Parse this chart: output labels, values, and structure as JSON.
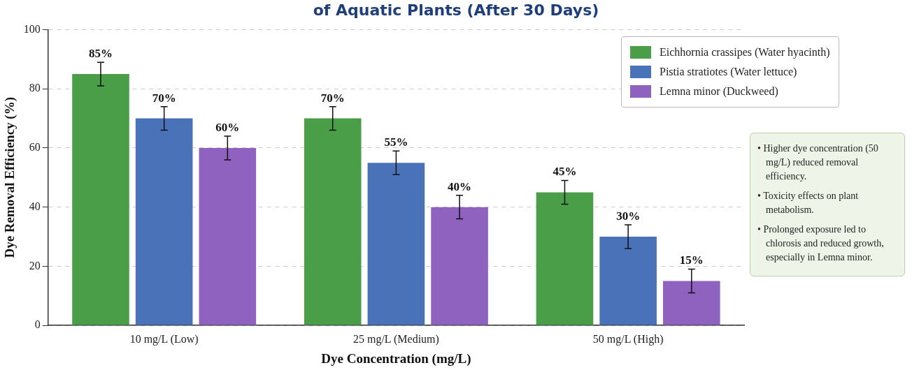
{
  "chart_data": {
    "type": "bar",
    "title": "of Aquatic Plants (After 30 Days)",
    "xlabel": "Dye Concentration (mg/L)",
    "ylabel": "Dye Removal Efficiency (%)",
    "categories": [
      "10 mg/L (Low)",
      "25 mg/L (Medium)",
      "50 mg/L (High)"
    ],
    "series": [
      {
        "name": "Eichhornia crassipes (Water hyacinth)",
        "color": "#4a9e48",
        "values": [
          85,
          70,
          45
        ],
        "errors": [
          4,
          4,
          4
        ],
        "value_labels": [
          "85%",
          "70%",
          "45%"
        ]
      },
      {
        "name": "Pistia stratiotes (Water lettuce)",
        "color": "#4a72b8",
        "values": [
          70,
          55,
          30
        ],
        "errors": [
          4,
          4,
          4
        ],
        "value_labels": [
          "70%",
          "55%",
          "30%"
        ]
      },
      {
        "name": "Lemna minor (Duckweed)",
        "color": "#8e62be",
        "values": [
          60,
          40,
          15
        ],
        "errors": [
          4,
          4,
          4
        ],
        "value_labels": [
          "60%",
          "40%",
          "15%"
        ]
      }
    ],
    "ylim": [
      0,
      100
    ],
    "yticks": [
      0,
      20,
      40,
      60,
      80,
      100
    ],
    "grid": "y",
    "legend": "top right",
    "annotations": [
      "• Higher dye concentration (50 mg/L) reduced removal efficiency.",
      "• Toxicity effects on plant metabolism.",
      "• Prolonged exposure led to chlorosis and reduced growth, especially in Lemna minor."
    ]
  }
}
